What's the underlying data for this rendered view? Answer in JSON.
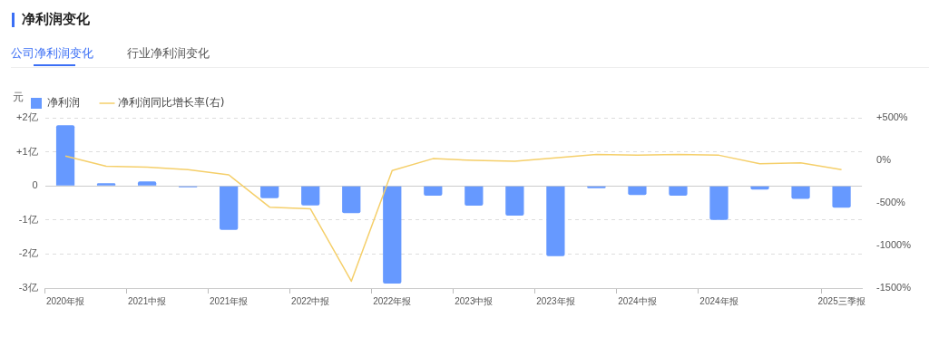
{
  "chart_data": {
    "type": "bar",
    "title": "净利润变化",
    "ylabel": "元",
    "annotations": [
      "公司净利润变化",
      "行业净利润变化"
    ],
    "categories": [
      "2020年报",
      null,
      "2021中报",
      null,
      "2021年报",
      null,
      "2022中报",
      null,
      "2022年报",
      null,
      "2023中报",
      null,
      "2023年报",
      null,
      "2024中报",
      null,
      "2024年报",
      null,
      null,
      "2025三季报"
    ],
    "series": [
      {
        "name": "净利润",
        "color": "#6699ff",
        "values": [
          1.78,
          0.08,
          0.13,
          -0.04,
          -1.29,
          -0.36,
          -0.57,
          -0.8,
          -2.87,
          -0.29,
          -0.58,
          -0.87,
          -2.06,
          -0.07,
          -0.27,
          -0.29,
          -1.0,
          -0.11,
          -0.38,
          -0.64
        ]
      },
      {
        "name": "净利润同比增长率(右)",
        "type": "line",
        "axis": "y2",
        "color": "#f5cf6a",
        "values": [
          50,
          -70,
          -80,
          -110,
          -170,
          -550,
          -570,
          -1420,
          -120,
          20,
          0,
          -10,
          30,
          70,
          60,
          70,
          60,
          -40,
          -30,
          -110
        ]
      }
    ],
    "ylim": [
      -3,
      2
    ],
    "yticks": [
      {
        "value": 2,
        "label": "+2亿"
      },
      {
        "value": 1,
        "label": "+1亿"
      },
      0,
      {
        "value": -1,
        "label": "-1亿"
      },
      {
        "value": -2,
        "label": "-2亿"
      },
      {
        "value": -3,
        "label": "-3亿"
      }
    ],
    "y2lim": [
      -1500,
      500
    ],
    "y2ticks": [
      {
        "value": 500,
        "label": "+500%"
      },
      {
        "value": 0,
        "label": "0%"
      },
      {
        "value": -500,
        "label": "-500%"
      },
      {
        "value": -1000,
        "label": "-1000%"
      },
      {
        "value": -1500,
        "label": "-1500%"
      }
    ],
    "grid": "y",
    "legend": "top left",
    "marker": "none"
  }
}
